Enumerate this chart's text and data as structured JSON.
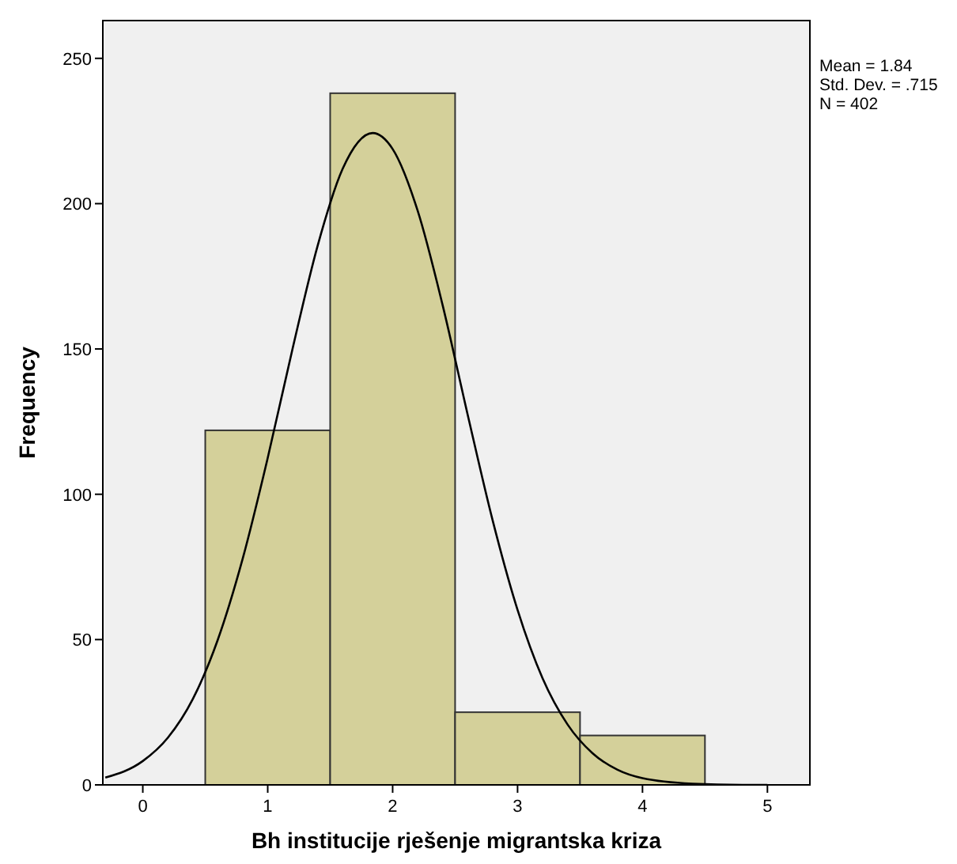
{
  "chart_data": {
    "type": "histogram",
    "xlabel": "Bh institucije rješenje migrantska kriza",
    "ylabel": "Frequency",
    "annotations": [
      "Mean = 1.84",
      "Std. Dev. = .715",
      "N = 402"
    ],
    "xlim": [
      -0.32,
      5.34
    ],
    "ylim": [
      0,
      263
    ],
    "xticks": [
      0,
      1,
      2,
      3,
      4,
      5
    ],
    "yticks": [
      0,
      50,
      100,
      150,
      200,
      250
    ],
    "grid": false,
    "series": [
      {
        "color": "#d4d09a",
        "bins": [
          0.5,
          1.5,
          2.5,
          3.5,
          4.5
        ],
        "values": [
          122,
          238,
          25,
          17
        ]
      },
      {
        "type": "line",
        "color": "#000000",
        "x": [
          -0.3,
          0,
          0.2,
          0.4,
          0.6,
          0.8,
          1.0,
          1.2,
          1.4,
          1.6,
          1.84,
          2.0,
          2.2,
          2.4,
          2.6,
          2.8,
          3.0,
          3.2,
          3.4,
          3.6,
          3.8,
          4.0,
          4.4,
          4.8,
          5.0
        ],
        "values": [
          2.5,
          8.2,
          16.2,
          29.5,
          49.9,
          77.9,
          112.5,
          150.3,
          185.6,
          212,
          224.3,
          218.8,
          197.6,
          165.1,
          127.5,
          91.1,
          60.2,
          36.7,
          20.8,
          10.9,
          5.2,
          2.3,
          0.4,
          0,
          0
        ]
      }
    ]
  }
}
